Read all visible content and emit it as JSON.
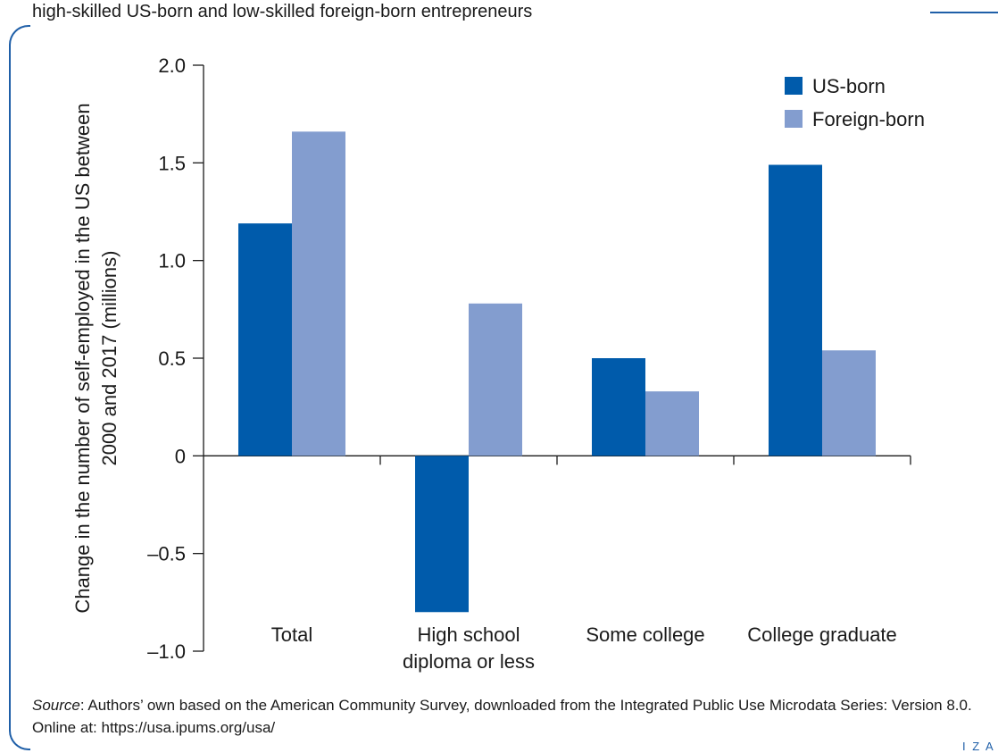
{
  "title_line": "high-skilled US-born and low-skilled foreign-born entrepreneurs",
  "source": {
    "label": "Source",
    "text": ": Authors’ own based on the American Community Survey, downloaded from the Integrated Public Use Microdata Series: Version 8.0. Online at: https://usa.ipums.org/usa/"
  },
  "logo": "I Z A",
  "colors": {
    "us_born": "#005bab",
    "foreign_born": "#839dcf",
    "frame": "#1f5fa8"
  },
  "chart_data": {
    "type": "bar",
    "categories": [
      "Total",
      "High school diploma or less",
      "Some college",
      "College graduate"
    ],
    "category_lines": [
      [
        "Total"
      ],
      [
        "High school",
        "diploma or less"
      ],
      [
        "Some college"
      ],
      [
        "College graduate"
      ]
    ],
    "series": [
      {
        "name": "US-born",
        "values": [
          1.19,
          -0.8,
          0.5,
          1.49
        ]
      },
      {
        "name": "Foreign-born",
        "values": [
          1.66,
          0.78,
          0.33,
          0.54
        ]
      }
    ],
    "ylabel_lines": [
      "Change in the number of self-employed in the US between",
      "2000 and 2017 (millions)"
    ],
    "ylim": [
      -1.0,
      2.0
    ],
    "yticks": [
      -1.0,
      -0.5,
      0,
      0.5,
      1.0,
      1.5,
      2.0
    ],
    "ytick_labels": [
      "–1.0",
      "–0.5",
      "0",
      "0.5",
      "1.0",
      "1.5",
      "2.0"
    ],
    "legend_position": "top-right",
    "grid": false
  }
}
